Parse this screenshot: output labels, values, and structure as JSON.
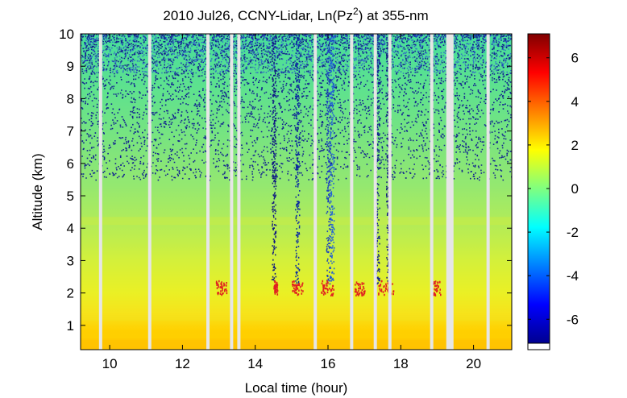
{
  "chart_data": {
    "type": "heatmap",
    "title": "2010 Jul26, CCNY-Lidar, Ln(Pz²) at 355-nm",
    "xlabel": "Local time (hour)",
    "ylabel": "Altitude (km)",
    "xlim": [
      9.2,
      21.05
    ],
    "ylim": [
      0.25,
      10.0
    ],
    "x_ticks": [
      10,
      12,
      14,
      16,
      18,
      20
    ],
    "y_ticks": [
      1,
      2,
      3,
      4,
      5,
      6,
      7,
      8,
      9,
      10
    ],
    "colorbar": {
      "range": [
        -7.1,
        7.1
      ],
      "ticks": [
        6,
        4,
        2,
        0,
        -2,
        -4,
        -6
      ],
      "colormap": "jet"
    },
    "data_gaps_hours": [
      9.75,
      11.1,
      12.7,
      13.35,
      13.55,
      15.65,
      16.65,
      17.3,
      17.7,
      18.85,
      19.35,
      20.4
    ],
    "noise_columns_hours": [
      14.5,
      15.15,
      16.0,
      16.1,
      17.35,
      17.65
    ],
    "cloud_layer": {
      "altitude_km": 2.1,
      "segments_hours": [
        [
          12.9,
          13.2
        ],
        [
          14.5,
          14.6
        ],
        [
          15.0,
          15.3
        ],
        [
          15.8,
          16.15
        ],
        [
          16.7,
          17.0
        ],
        [
          17.35,
          17.8
        ],
        [
          18.85,
          19.1
        ]
      ]
    },
    "colors": {
      "surface": "#ffcc00",
      "boundary_layer": "#f0f020",
      "free_troposphere": "#70e080",
      "upper": "#3ee0a0",
      "noise": "#102090",
      "cloud": "#e02020",
      "gap": "#e6e6e6"
    }
  }
}
